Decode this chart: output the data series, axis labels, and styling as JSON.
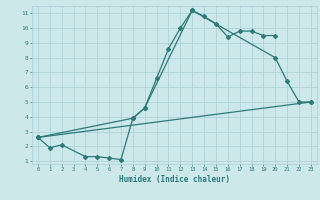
{
  "xlabel": "Humidex (Indice chaleur)",
  "bg_color": "#cce8ea",
  "grid_color": "#aacfd4",
  "line_color": "#2d7a78",
  "xlim": [
    -0.5,
    23.5
  ],
  "ylim": [
    0.8,
    11.5
  ],
  "xticks": [
    0,
    1,
    2,
    3,
    4,
    5,
    6,
    7,
    8,
    9,
    10,
    11,
    12,
    13,
    14,
    15,
    16,
    17,
    18,
    19,
    20,
    21,
    22,
    23
  ],
  "yticks": [
    1,
    2,
    3,
    4,
    5,
    6,
    7,
    8,
    9,
    10,
    11
  ],
  "line1_x": [
    0,
    1,
    2,
    4,
    5,
    6,
    7,
    8,
    9,
    10,
    11,
    12,
    13,
    14,
    15,
    16,
    17,
    18,
    19,
    20
  ],
  "line1_y": [
    2.6,
    1.9,
    2.1,
    1.3,
    1.3,
    1.2,
    1.1,
    3.9,
    4.6,
    6.6,
    8.6,
    10.0,
    11.2,
    10.8,
    10.3,
    9.4,
    9.8,
    9.8,
    9.5,
    9.5
  ],
  "line2_x": [
    0,
    8,
    9,
    13,
    20,
    21,
    22,
    23
  ],
  "line2_y": [
    2.6,
    3.9,
    4.6,
    11.2,
    8.0,
    6.4,
    5.0,
    5.0
  ],
  "line3_x": [
    0,
    23
  ],
  "line3_y": [
    2.6,
    5.0
  ]
}
